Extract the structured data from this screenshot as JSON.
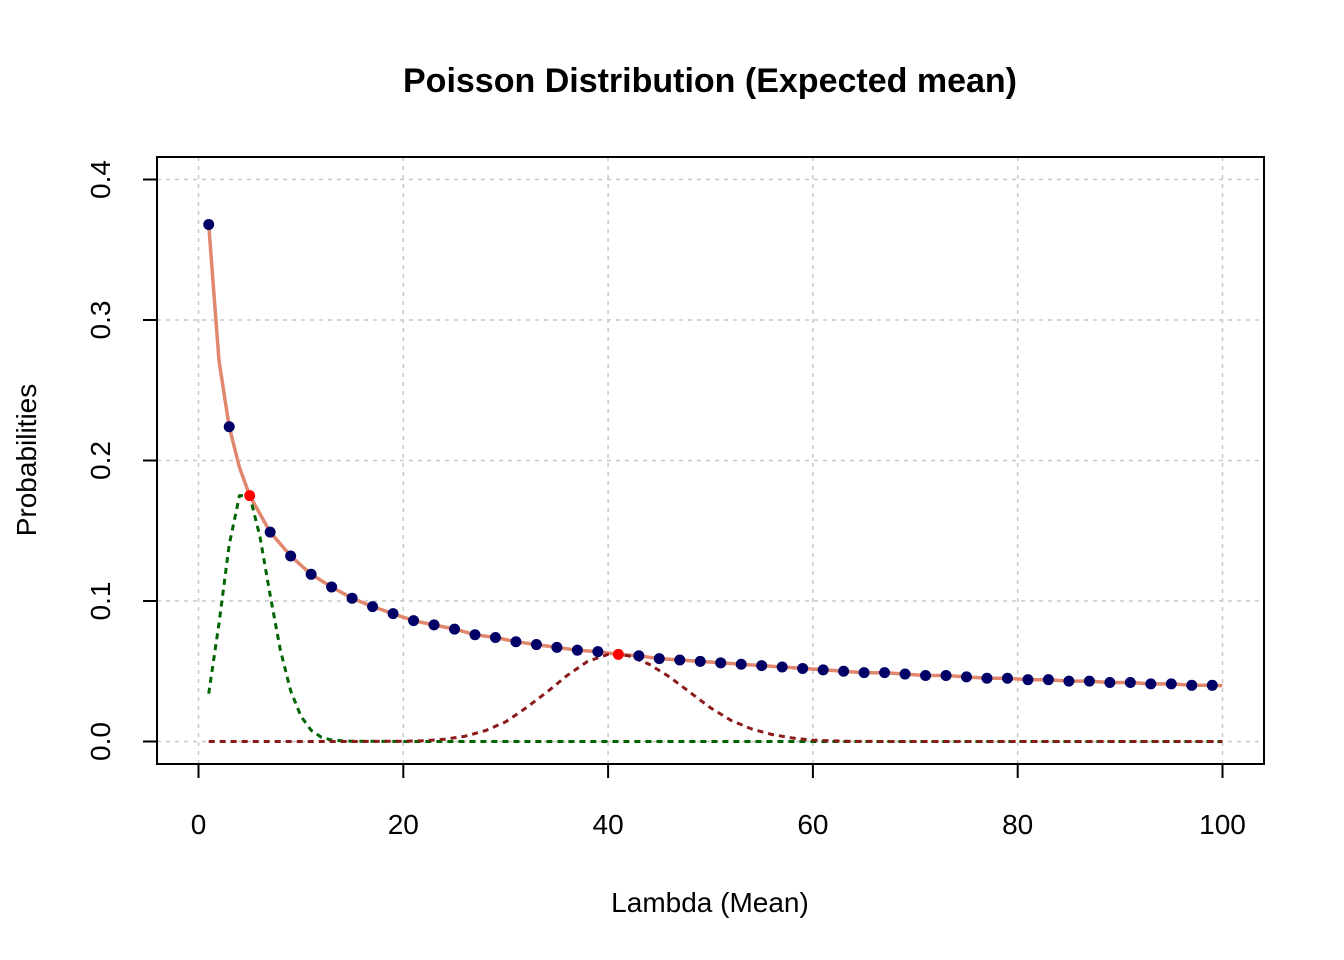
{
  "chart_data": {
    "type": "line",
    "title": "Poisson Distribution (Expected mean)",
    "xlabel": "Lambda (Mean)",
    "ylabel": "Probabilities",
    "xlim": [
      0,
      100
    ],
    "ylim": [
      0,
      0.4
    ],
    "xticks": [
      "0",
      "20",
      "40",
      "60",
      "80",
      "100"
    ],
    "yticks": [
      "0.0",
      "0.1",
      "0.2",
      "0.3",
      "0.4"
    ],
    "grid": true,
    "series": [
      {
        "style": "solid",
        "color": "#E0876E",
        "points": [
          [
            1,
            0.368
          ],
          [
            2,
            0.271
          ],
          [
            3,
            0.224
          ],
          [
            4,
            0.195
          ],
          [
            5,
            0.175
          ],
          [
            7,
            0.149
          ],
          [
            9,
            0.132
          ],
          [
            11,
            0.119
          ],
          [
            13,
            0.11
          ],
          [
            15,
            0.102
          ],
          [
            17,
            0.096
          ],
          [
            19,
            0.091
          ],
          [
            21,
            0.086
          ],
          [
            23,
            0.083
          ],
          [
            25,
            0.08
          ],
          [
            27,
            0.076
          ],
          [
            29,
            0.074
          ],
          [
            31,
            0.071
          ],
          [
            33,
            0.069
          ],
          [
            35,
            0.067
          ],
          [
            37,
            0.065
          ],
          [
            39,
            0.064
          ],
          [
            41,
            0.062
          ],
          [
            43,
            0.061
          ],
          [
            45,
            0.059
          ],
          [
            47,
            0.058
          ],
          [
            49,
            0.057
          ],
          [
            51,
            0.056
          ],
          [
            53,
            0.055
          ],
          [
            55,
            0.054
          ],
          [
            57,
            0.053
          ],
          [
            59,
            0.052
          ],
          [
            61,
            0.051
          ],
          [
            63,
            0.05
          ],
          [
            65,
            0.049
          ],
          [
            67,
            0.049
          ],
          [
            69,
            0.048
          ],
          [
            71,
            0.047
          ],
          [
            73,
            0.047
          ],
          [
            75,
            0.046
          ],
          [
            77,
            0.045
          ],
          [
            79,
            0.045
          ],
          [
            81,
            0.044
          ],
          [
            83,
            0.044
          ],
          [
            85,
            0.043
          ],
          [
            87,
            0.043
          ],
          [
            89,
            0.042
          ],
          [
            91,
            0.042
          ],
          [
            93,
            0.041
          ],
          [
            95,
            0.041
          ],
          [
            97,
            0.04
          ],
          [
            99,
            0.04
          ],
          [
            100,
            0.0398
          ]
        ]
      },
      {
        "style": "points",
        "color": "#000066",
        "points": [
          [
            1,
            0.368
          ],
          [
            3,
            0.224
          ],
          [
            7,
            0.149
          ],
          [
            9,
            0.132
          ],
          [
            11,
            0.119
          ],
          [
            13,
            0.11
          ],
          [
            15,
            0.102
          ],
          [
            17,
            0.096
          ],
          [
            19,
            0.091
          ],
          [
            21,
            0.086
          ],
          [
            23,
            0.083
          ],
          [
            25,
            0.08
          ],
          [
            27,
            0.076
          ],
          [
            29,
            0.074
          ],
          [
            31,
            0.071
          ],
          [
            33,
            0.069
          ],
          [
            35,
            0.067
          ],
          [
            37,
            0.065
          ],
          [
            39,
            0.064
          ],
          [
            43,
            0.061
          ],
          [
            45,
            0.059
          ],
          [
            47,
            0.058
          ],
          [
            49,
            0.057
          ],
          [
            51,
            0.056
          ],
          [
            53,
            0.055
          ],
          [
            55,
            0.054
          ],
          [
            57,
            0.053
          ],
          [
            59,
            0.052
          ],
          [
            61,
            0.051
          ],
          [
            63,
            0.05
          ],
          [
            65,
            0.049
          ],
          [
            67,
            0.049
          ],
          [
            69,
            0.048
          ],
          [
            71,
            0.047
          ],
          [
            73,
            0.047
          ],
          [
            75,
            0.046
          ],
          [
            77,
            0.045
          ],
          [
            79,
            0.045
          ],
          [
            81,
            0.044
          ],
          [
            83,
            0.044
          ],
          [
            85,
            0.043
          ],
          [
            87,
            0.043
          ],
          [
            89,
            0.042
          ],
          [
            91,
            0.042
          ],
          [
            93,
            0.041
          ],
          [
            95,
            0.041
          ],
          [
            97,
            0.04
          ],
          [
            99,
            0.04
          ]
        ]
      },
      {
        "style": "points",
        "color": "#FF0000",
        "points": [
          [
            5,
            0.175
          ],
          [
            41,
            0.062
          ]
        ]
      },
      {
        "style": "dashed",
        "color": "#006400",
        "lambda": 5,
        "points": [
          [
            1,
            0.034
          ],
          [
            2,
            0.084
          ],
          [
            3,
            0.14
          ],
          [
            4,
            0.175
          ],
          [
            5,
            0.175
          ],
          [
            6,
            0.146
          ],
          [
            7,
            0.104
          ],
          [
            8,
            0.065
          ],
          [
            9,
            0.036
          ],
          [
            10,
            0.018
          ],
          [
            11,
            0.008
          ],
          [
            12,
            0.003
          ],
          [
            13,
            0.001
          ],
          [
            14,
            0.0005
          ],
          [
            15,
            0.0002
          ],
          [
            20,
            0.0
          ],
          [
            100,
            0.0
          ]
        ]
      },
      {
        "style": "dashed",
        "color": "#8B1A1A",
        "lambda": 41,
        "points": [
          [
            1,
            0.0
          ],
          [
            15,
            0.0
          ],
          [
            20,
            0.0002
          ],
          [
            22,
            0.0006
          ],
          [
            24,
            0.0016
          ],
          [
            26,
            0.0037
          ],
          [
            28,
            0.0077
          ],
          [
            30,
            0.014
          ],
          [
            32,
            0.024
          ],
          [
            34,
            0.035
          ],
          [
            36,
            0.047
          ],
          [
            38,
            0.057
          ],
          [
            40,
            0.062
          ],
          [
            41,
            0.062
          ],
          [
            42,
            0.061
          ],
          [
            44,
            0.055
          ],
          [
            46,
            0.046
          ],
          [
            48,
            0.035
          ],
          [
            50,
            0.024
          ],
          [
            52,
            0.015
          ],
          [
            54,
            0.009
          ],
          [
            56,
            0.005
          ],
          [
            58,
            0.0025
          ],
          [
            60,
            0.001
          ],
          [
            62,
            0.0004
          ],
          [
            64,
            0.0001
          ],
          [
            70,
            0.0
          ],
          [
            100,
            0.0
          ]
        ]
      }
    ]
  }
}
